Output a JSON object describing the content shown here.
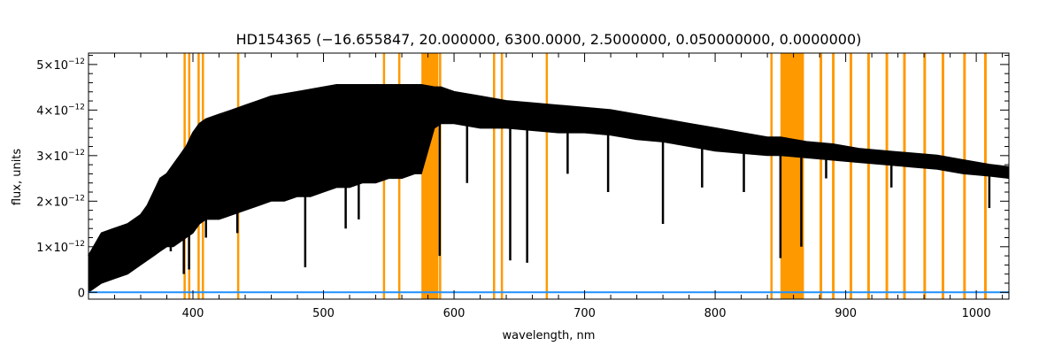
{
  "chart_data": {
    "type": "line",
    "title": "HD154365   (−16.655847, 20.000000, 6300.0000, 2.5000000, 0.050000000, 0.0000000)",
    "xlabel": "wavelength, nm",
    "ylabel": "flux, units",
    "xlim": [
      320,
      1025
    ],
    "ylim": [
      -1.5e-13,
      5.25e-12
    ],
    "x_ticks": [
      {
        "value": 400,
        "label": "400"
      },
      {
        "value": 500,
        "label": "500"
      },
      {
        "value": 600,
        "label": "600"
      },
      {
        "value": 700,
        "label": "700"
      },
      {
        "value": 800,
        "label": "800"
      },
      {
        "value": 900,
        "label": "900"
      },
      {
        "value": 1000,
        "label": "1000"
      }
    ],
    "y_ticks": [
      {
        "value": 0,
        "label": "0",
        "exp": ""
      },
      {
        "value": 1e-12,
        "label": "1×10",
        "exp": "−12"
      },
      {
        "value": 2e-12,
        "label": "2×10",
        "exp": "−12"
      },
      {
        "value": 3e-12,
        "label": "3×10",
        "exp": "−12"
      },
      {
        "value": 4e-12,
        "label": "4×10",
        "exp": "−12"
      },
      {
        "value": 5e-12,
        "label": "5×10",
        "exp": "−12"
      }
    ],
    "colors": {
      "spectrum": "#000000",
      "error": "#1e90ff",
      "masks": "#ff9900"
    },
    "series": [
      {
        "style": "spectrum",
        "x": [
          320,
          330,
          340,
          350,
          360,
          365,
          370,
          375,
          380,
          385,
          390,
          395,
          400,
          405,
          410,
          420,
          430,
          440,
          450,
          460,
          470,
          480,
          490,
          500,
          510,
          520,
          530,
          540,
          550,
          560,
          570,
          575,
          585,
          590,
          600,
          620,
          640,
          660,
          680,
          700,
          720,
          740,
          760,
          780,
          800,
          820,
          840,
          850,
          870,
          890,
          910,
          930,
          950,
          970,
          990,
          1010,
          1025
        ],
        "y_upper": [
          8e-13,
          1.3e-12,
          1.4e-12,
          1.5e-12,
          1.7e-12,
          1.9e-12,
          2.2e-12,
          2.5e-12,
          2.6e-12,
          2.8e-12,
          3e-12,
          3.2e-12,
          3.5e-12,
          3.7e-12,
          3.8e-12,
          3.9e-12,
          4e-12,
          4.1e-12,
          4.2e-12,
          4.3e-12,
          4.35e-12,
          4.4e-12,
          4.45e-12,
          4.5e-12,
          4.55e-12,
          4.55e-12,
          4.55e-12,
          4.55e-12,
          4.55e-12,
          4.55e-12,
          4.55e-12,
          4.55e-12,
          4.5e-12,
          4.5e-12,
          4.4e-12,
          4.3e-12,
          4.2e-12,
          4.15e-12,
          4.1e-12,
          4.05e-12,
          4e-12,
          3.9e-12,
          3.8e-12,
          3.7e-12,
          3.6e-12,
          3.5e-12,
          3.4e-12,
          3.4e-12,
          3.3e-12,
          3.25e-12,
          3.15e-12,
          3.1e-12,
          3.05e-12,
          3e-12,
          2.9e-12,
          2.8e-12,
          2.75e-12
        ],
        "y_lower": [
          0.0,
          2e-13,
          3e-13,
          4e-13,
          6e-13,
          7e-13,
          8e-13,
          9e-13,
          1e-12,
          1e-12,
          1.1e-12,
          1.2e-12,
          1.3e-12,
          1.5e-12,
          1.6e-12,
          1.6e-12,
          1.7e-12,
          1.8e-12,
          1.9e-12,
          2e-12,
          2e-12,
          2.1e-12,
          2.1e-12,
          2.2e-12,
          2.3e-12,
          2.3e-12,
          2.4e-12,
          2.4e-12,
          2.5e-12,
          2.5e-12,
          2.6e-12,
          2.6e-12,
          3.6e-12,
          3.7e-12,
          3.7e-12,
          3.6e-12,
          3.6e-12,
          3.55e-12,
          3.5e-12,
          3.5e-12,
          3.45e-12,
          3.35e-12,
          3.3e-12,
          3.2e-12,
          3.1e-12,
          3.05e-12,
          3e-12,
          3e-12,
          2.95e-12,
          2.9e-12,
          2.85e-12,
          2.8e-12,
          2.75e-12,
          2.7e-12,
          2.6e-12,
          2.55e-12,
          2.5e-12
        ],
        "absorption_lines": [
          {
            "x": 383,
            "y": 9e-13
          },
          {
            "x": 393,
            "y": 4e-13
          },
          {
            "x": 397,
            "y": 5e-13
          },
          {
            "x": 410,
            "y": 1.2e-12
          },
          {
            "x": 434,
            "y": 1.3e-12
          },
          {
            "x": 486,
            "y": 5.5e-13
          },
          {
            "x": 517,
            "y": 1.4e-12
          },
          {
            "x": 527,
            "y": 1.6e-12
          },
          {
            "x": 589,
            "y": 8e-13
          },
          {
            "x": 610,
            "y": 2.4e-12
          },
          {
            "x": 643,
            "y": 7e-13
          },
          {
            "x": 656,
            "y": 6.5e-13
          },
          {
            "x": 687,
            "y": 2.6e-12
          },
          {
            "x": 718,
            "y": 2.2e-12
          },
          {
            "x": 760,
            "y": 1.5e-12
          },
          {
            "x": 790,
            "y": 2.3e-12
          },
          {
            "x": 822,
            "y": 2.2e-12
          },
          {
            "x": 850,
            "y": 7.5e-13
          },
          {
            "x": 866,
            "y": 1e-12
          },
          {
            "x": 885,
            "y": 2.5e-12
          },
          {
            "x": 935,
            "y": 2.3e-12
          },
          {
            "x": 1010,
            "y": 1.85e-12
          }
        ]
      },
      {
        "style": "error",
        "x": [
          320,
          1025
        ],
        "y": [
          0.0,
          0.0
        ]
      }
    ],
    "mask_regions": [
      [
        392.8,
        393.8
      ],
      [
        396.3,
        397.3
      ],
      [
        403.5,
        404.3
      ],
      [
        406.8,
        407.8
      ],
      [
        433.8,
        434.8
      ],
      [
        545.5,
        546.5
      ],
      [
        557.2,
        558.2
      ],
      [
        575,
        588
      ],
      [
        588.5,
        589.5
      ],
      [
        629.8,
        630.8
      ],
      [
        635.8,
        636.8
      ],
      [
        670.2,
        671.2
      ],
      [
        842.3,
        843.3
      ],
      [
        850,
        868
      ],
      [
        880,
        882
      ],
      [
        889.5,
        891.5
      ],
      [
        903,
        905
      ],
      [
        916.5,
        918.5
      ],
      [
        930.5,
        932.5
      ],
      [
        944,
        946
      ],
      [
        959.5,
        961.5
      ],
      [
        973.5,
        975.5
      ],
      [
        990,
        992
      ],
      [
        1006,
        1008
      ]
    ]
  }
}
